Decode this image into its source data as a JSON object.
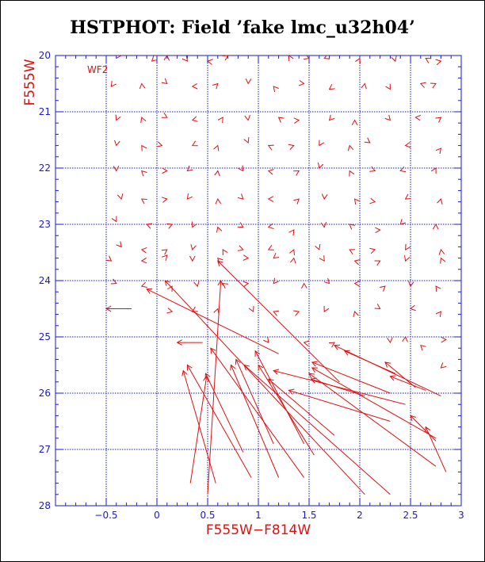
{
  "title": "HSTPHOT: Field ’fake lmc_u32h04’",
  "colors": {
    "axis": "#1a1acc",
    "grid": "#1a1acc",
    "arrows": "#e01010",
    "text": "#e01010"
  },
  "chart_data": {
    "type": "scatter",
    "title": "HSTPHOT: Field ’fake lmc_u32h04’",
    "xlabel": "F555W−F814W",
    "ylabel": "F555W",
    "xlim": [
      -1.0,
      3.0
    ],
    "ylim": [
      28,
      20
    ],
    "y_inverted": true,
    "x_ticks": [
      -0.5,
      0,
      0.5,
      1,
      1.5,
      2,
      2.5,
      3
    ],
    "x_tick_labels": [
      "−0.5",
      "0",
      "0.5",
      "1",
      "1.5",
      "2",
      "2.5",
      "3"
    ],
    "y_ticks": [
      20,
      21,
      22,
      23,
      24,
      25,
      26,
      27,
      28
    ],
    "y_tick_labels": [
      "20",
      "21",
      "22",
      "23",
      "24",
      "25",
      "26",
      "27",
      "28"
    ],
    "grid": true,
    "annotation": "WF2",
    "markers": [
      [
        -0.35,
        20.0
      ],
      [
        -0.05,
        20.1
      ],
      [
        0.1,
        20.0
      ],
      [
        0.3,
        20.1
      ],
      [
        0.5,
        20.1
      ],
      [
        0.7,
        20.0
      ],
      [
        1.0,
        20.0
      ],
      [
        1.3,
        20.0
      ],
      [
        1.5,
        20.05
      ],
      [
        1.65,
        20.05
      ],
      [
        2.0,
        20.05
      ],
      [
        2.35,
        20.1
      ],
      [
        2.65,
        20.05
      ],
      [
        2.8,
        20.1
      ],
      [
        -0.45,
        20.55
      ],
      [
        -0.15,
        20.5
      ],
      [
        0.1,
        20.5
      ],
      [
        0.35,
        20.55
      ],
      [
        0.6,
        20.5
      ],
      [
        0.9,
        20.5
      ],
      [
        1.15,
        20.55
      ],
      [
        1.45,
        20.5
      ],
      [
        1.7,
        20.6
      ],
      [
        2.05,
        20.5
      ],
      [
        2.3,
        20.6
      ],
      [
        2.6,
        20.5
      ],
      [
        2.75,
        20.5
      ],
      [
        -0.4,
        21.15
      ],
      [
        -0.15,
        21.1
      ],
      [
        0.1,
        21.1
      ],
      [
        0.35,
        21.15
      ],
      [
        0.65,
        21.1
      ],
      [
        0.9,
        21.15
      ],
      [
        1.2,
        21.1
      ],
      [
        1.4,
        21.15
      ],
      [
        1.7,
        21.15
      ],
      [
        1.95,
        21.15
      ],
      [
        2.3,
        21.15
      ],
      [
        2.55,
        21.1
      ],
      [
        2.8,
        21.1
      ],
      [
        -0.4,
        21.6
      ],
      [
        -0.15,
        21.6
      ],
      [
        0.05,
        21.6
      ],
      [
        0.35,
        21.6
      ],
      [
        0.6,
        21.6
      ],
      [
        0.9,
        21.55
      ],
      [
        1.1,
        21.6
      ],
      [
        1.35,
        21.6
      ],
      [
        1.6,
        21.6
      ],
      [
        1.9,
        21.6
      ],
      [
        2.1,
        21.55
      ],
      [
        2.45,
        21.6
      ],
      [
        2.8,
        21.65
      ],
      [
        -0.4,
        22.05
      ],
      [
        -0.15,
        22.05
      ],
      [
        0.1,
        22.05
      ],
      [
        0.3,
        22.05
      ],
      [
        0.6,
        22.05
      ],
      [
        0.85,
        22.05
      ],
      [
        1.1,
        22.05
      ],
      [
        1.4,
        22.05
      ],
      [
        1.6,
        22.0
      ],
      [
        1.9,
        22.05
      ],
      [
        2.15,
        22.05
      ],
      [
        2.4,
        22.05
      ],
      [
        2.75,
        22.0
      ],
      [
        -0.35,
        22.55
      ],
      [
        -0.15,
        22.55
      ],
      [
        0.1,
        22.55
      ],
      [
        0.3,
        22.55
      ],
      [
        0.6,
        22.55
      ],
      [
        0.85,
        22.55
      ],
      [
        1.1,
        22.55
      ],
      [
        1.4,
        22.55
      ],
      [
        1.65,
        22.55
      ],
      [
        1.95,
        22.55
      ],
      [
        2.15,
        22.6
      ],
      [
        2.45,
        22.55
      ],
      [
        2.8,
        22.55
      ],
      [
        -0.4,
        22.95
      ],
      [
        -0.1,
        23.0
      ],
      [
        0.15,
        23.0
      ],
      [
        0.35,
        23.05
      ],
      [
        0.6,
        23.05
      ],
      [
        0.85,
        23.05
      ],
      [
        1.1,
        23.05
      ],
      [
        1.35,
        23.1
      ],
      [
        1.65,
        23.05
      ],
      [
        1.9,
        23.0
      ],
      [
        2.2,
        23.1
      ],
      [
        2.4,
        23.0
      ],
      [
        2.75,
        23.0
      ],
      [
        -0.35,
        23.4
      ],
      [
        -0.15,
        23.45
      ],
      [
        0.1,
        23.45
      ],
      [
        0.35,
        23.45
      ],
      [
        0.65,
        23.45
      ],
      [
        0.85,
        23.45
      ],
      [
        1.1,
        23.45
      ],
      [
        1.35,
        23.45
      ],
      [
        1.6,
        23.45
      ],
      [
        1.9,
        23.45
      ],
      [
        2.15,
        23.45
      ],
      [
        2.45,
        23.45
      ],
      [
        2.8,
        23.45
      ],
      [
        -0.45,
        23.65
      ],
      [
        -0.15,
        23.65
      ],
      [
        0.1,
        23.55
      ],
      [
        0.35,
        23.65
      ],
      [
        0.6,
        23.6
      ],
      [
        0.9,
        23.6
      ],
      [
        1.15,
        23.6
      ],
      [
        1.35,
        23.6
      ],
      [
        1.65,
        23.65
      ],
      [
        1.95,
        23.65
      ],
      [
        2.2,
        23.65
      ],
      [
        2.45,
        23.65
      ],
      [
        2.8,
        23.6
      ],
      [
        -0.4,
        24.05
      ],
      [
        -0.15,
        24.1
      ],
      [
        0.15,
        24.1
      ],
      [
        0.4,
        24.1
      ],
      [
        0.65,
        24.05
      ],
      [
        0.9,
        24.05
      ],
      [
        1.15,
        24.05
      ],
      [
        1.45,
        24.05
      ],
      [
        1.7,
        24.05
      ],
      [
        1.95,
        24.05
      ],
      [
        2.25,
        24.1
      ],
      [
        2.5,
        24.1
      ],
      [
        2.75,
        24.1
      ],
      [
        0.15,
        24.55
      ],
      [
        0.35,
        24.55
      ],
      [
        0.6,
        24.5
      ],
      [
        0.95,
        24.55
      ],
      [
        1.15,
        24.55
      ],
      [
        1.4,
        24.55
      ],
      [
        1.65,
        24.55
      ],
      [
        1.95,
        24.55
      ],
      [
        2.2,
        24.5
      ],
      [
        2.5,
        24.5
      ],
      [
        2.8,
        24.55
      ],
      [
        2.3,
        25.1
      ],
      [
        2.6,
        25.15
      ],
      [
        2.85,
        25.05
      ],
      [
        2.8,
        25.55
      ],
      [
        2.45,
        25.0
      ],
      [
        1.1,
        25.1
      ],
      [
        1.45,
        25.1
      ],
      [
        1.75,
        25.1
      ]
    ],
    "vectors": [
      [
        0.5,
        27.8,
        0.63,
        24.0
      ],
      [
        0.58,
        27.6,
        0.26,
        25.6
      ],
      [
        0.33,
        27.6,
        0.49,
        25.7
      ],
      [
        0.93,
        27.5,
        0.3,
        25.5
      ],
      [
        1.2,
        27.5,
        0.73,
        25.5
      ],
      [
        0.85,
        27.05,
        0.48,
        25.65
      ],
      [
        1.45,
        27.5,
        0.53,
        25.2
      ],
      [
        1.15,
        26.9,
        0.78,
        25.4
      ],
      [
        2.05,
        27.8,
        0.08,
        24.0
      ],
      [
        2.3,
        27.8,
        0.86,
        25.5
      ],
      [
        1.45,
        26.9,
        0.97,
        25.25
      ],
      [
        1.75,
        26.75,
        1.1,
        25.75
      ],
      [
        1.55,
        27.1,
        1.0,
        25.5
      ],
      [
        2.75,
        26.8,
        1.53,
        25.55
      ],
      [
        2.3,
        26.0,
        1.53,
        25.45
      ],
      [
        2.3,
        26.5,
        1.3,
        25.95
      ],
      [
        2.8,
        26.05,
        1.75,
        25.15
      ],
      [
        2.45,
        26.2,
        1.15,
        25.6
      ],
      [
        2.75,
        26.85,
        2.5,
        26.4
      ],
      [
        2.85,
        27.4,
        2.65,
        26.6
      ],
      [
        2.75,
        27.3,
        1.5,
        25.65
      ],
      [
        2.05,
        26.05,
        1.52,
        25.75
      ],
      [
        2.65,
        25.95,
        2.3,
        25.7
      ],
      [
        2.55,
        25.9,
        2.25,
        25.45
      ],
      [
        1.8,
        25.8,
        0.6,
        23.65
      ],
      [
        2.35,
        25.65,
        1.85,
        25.25
      ],
      [
        1.2,
        25.3,
        -0.1,
        24.15
      ],
      [
        0.45,
        25.1,
        0.2,
        25.1
      ],
      [
        -0.25,
        24.5,
        -0.5,
        24.5
      ]
    ]
  }
}
